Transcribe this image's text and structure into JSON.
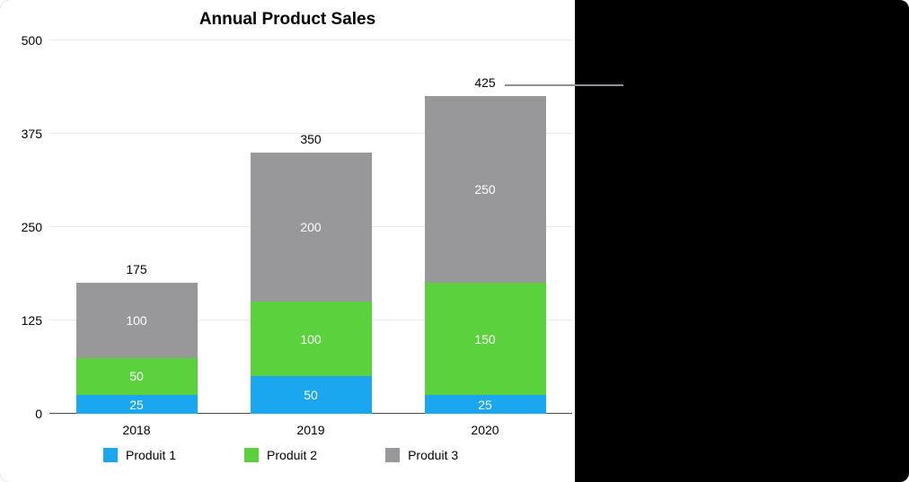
{
  "chart_data": {
    "type": "bar",
    "stacked": true,
    "title": "Annual Product Sales",
    "categories": [
      "2018",
      "2019",
      "2020"
    ],
    "series": [
      {
        "name": "Produit 1",
        "color": "#1ba6f0",
        "values": [
          25,
          50,
          25
        ]
      },
      {
        "name": "Produit 2",
        "color": "#5bd13e",
        "values": [
          50,
          100,
          150
        ]
      },
      {
        "name": "Produit 3",
        "color": "#98989a",
        "values": [
          100,
          200,
          250
        ]
      }
    ],
    "totals": [
      175,
      350,
      425
    ],
    "ylim": [
      0,
      500
    ],
    "yticks": [
      0,
      125,
      250,
      375,
      500
    ],
    "grid": true,
    "legend_position": "bottom",
    "callout": {
      "value": 425,
      "target_category": "2020"
    }
  }
}
